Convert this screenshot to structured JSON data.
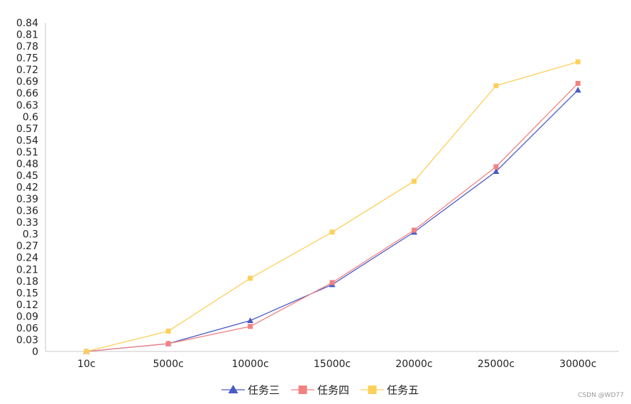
{
  "chart_data": {
    "type": "line",
    "title": "",
    "xlabel": "",
    "ylabel": "",
    "categories": [
      "10c",
      "5000c",
      "10000c",
      "15000c",
      "20000c",
      "25000c",
      "30000c"
    ],
    "y_ticks": [
      0,
      0.03,
      0.06,
      0.09,
      0.12,
      0.15,
      0.18,
      0.21,
      0.24,
      0.27,
      0.3,
      0.33,
      0.36,
      0.39,
      0.42,
      0.45,
      0.48,
      0.51,
      0.54,
      0.57,
      0.6,
      0.63,
      0.66,
      0.69,
      0.72,
      0.75,
      0.78,
      0.81,
      0.84
    ],
    "ylim": [
      0,
      0.84
    ],
    "grid": false,
    "legend_position": "bottom-center",
    "series": [
      {
        "name": "任务三",
        "color": "#4a5bc4",
        "marker": "triangle",
        "values": [
          0,
          0.02,
          0.079,
          0.171,
          0.305,
          0.46,
          0.668
        ]
      },
      {
        "name": "任务四",
        "color": "#f38181",
        "marker": "square",
        "values": [
          0,
          0.02,
          0.064,
          0.176,
          0.31,
          0.472,
          0.685
        ]
      },
      {
        "name": "任务五",
        "color": "#fcd05a",
        "marker": "square",
        "values": [
          0,
          0.052,
          0.187,
          0.305,
          0.435,
          0.679,
          0.74
        ]
      }
    ]
  },
  "watermark": "CSDN @WD77"
}
